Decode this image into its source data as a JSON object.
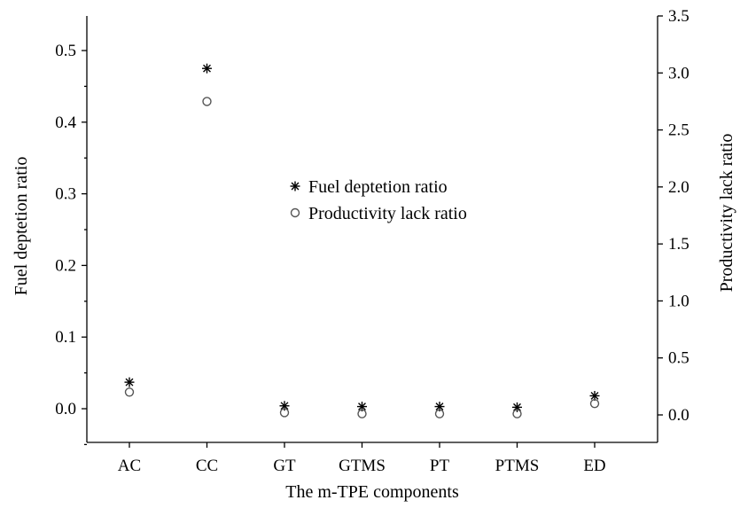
{
  "chart_data": {
    "type": "scatter",
    "categories": [
      "AC",
      "CC",
      "GT",
      "GTMS",
      "PT",
      "PTMS",
      "ED"
    ],
    "xlabel": "The m-TPE components",
    "ylabel": "Fuel deptetion ratio",
    "y2label": "Productivity lack ratio",
    "ylim": [
      -0.05,
      0.55
    ],
    "y2lim": [
      -0.3,
      3.5
    ],
    "yticks": [
      0.0,
      0.1,
      0.2,
      0.3,
      0.4,
      0.5
    ],
    "ytick_labels": [
      "0.0",
      "0.1",
      "0.2",
      "0.3",
      "0.4",
      "0.5"
    ],
    "y2ticks": [
      0.0,
      0.5,
      1.0,
      1.5,
      2.0,
      2.5,
      3.0,
      3.5
    ],
    "y2tick_labels": [
      "0.0",
      "0.5",
      "1.0",
      "1.5",
      "2.0",
      "2.5",
      "3.0",
      "3.5"
    ],
    "series": [
      {
        "name": "Fuel deptetion ratio",
        "axis": "left",
        "marker": "star",
        "color": "#000000",
        "values": [
          0.037,
          0.475,
          0.004,
          0.003,
          0.003,
          0.002,
          0.018
        ]
      },
      {
        "name": "Productivity lack ratio",
        "axis": "right",
        "marker": "circle",
        "color": "#555555",
        "values": [
          0.2,
          2.75,
          0.02,
          0.01,
          0.01,
          0.01,
          0.1
        ]
      }
    ],
    "grid": false,
    "legend_position": "center"
  }
}
